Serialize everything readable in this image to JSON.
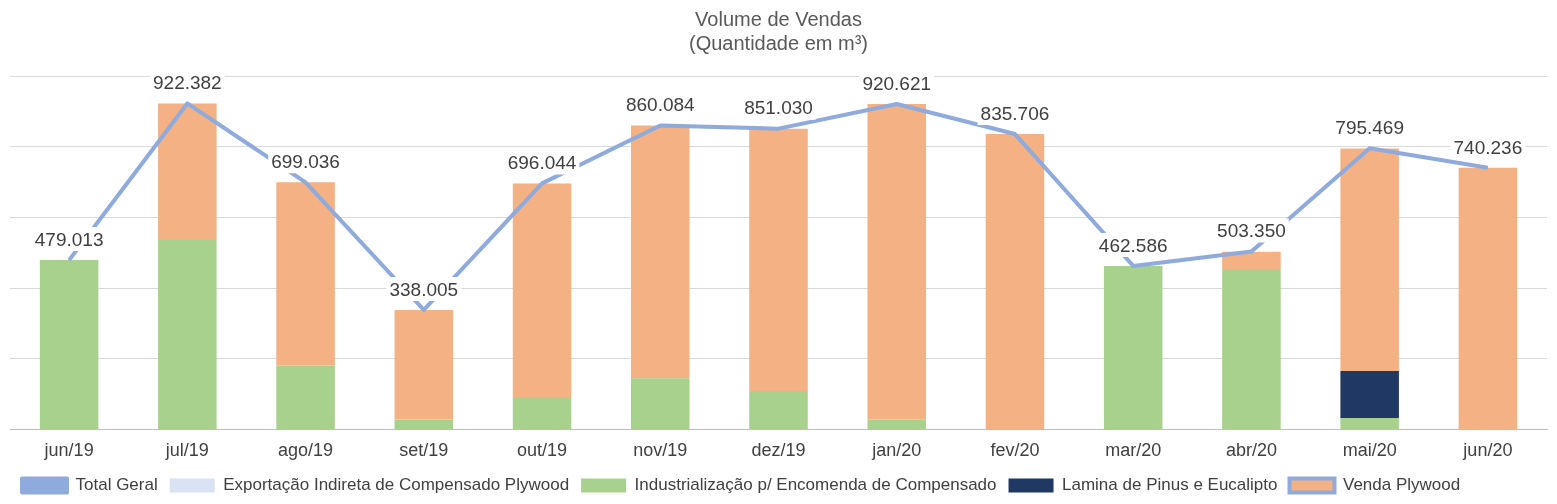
{
  "chart_data": {
    "type": "bar",
    "title": "Volume de Vendas\n(Quantidade em m³)",
    "stacked": true,
    "grid": "y",
    "legend": "bottom",
    "tick_labels": "x",
    "marker": "none",
    "categories": [
      "jun/19",
      "jul/19",
      "ago/19",
      "set/19",
      "out/19",
      "nov/19",
      "dez/19",
      "jan/20",
      "fev/20",
      "mar/20",
      "abr/20",
      "mai/20",
      "jun/20"
    ],
    "ylim": [
      0,
      1000
    ],
    "yticks": [
      {
        "value": 0,
        "label": null
      },
      {
        "value": 200,
        "label": null
      },
      {
        "value": 400,
        "label": null
      },
      {
        "value": 600,
        "label": null
      },
      {
        "value": 800,
        "label": null
      },
      {
        "value": 1000,
        "label": null
      }
    ],
    "series": [
      {
        "name": "Exportação Indireta de Compensado Plywood",
        "color": "#dae3f3",
        "values": [
          null,
          null,
          null,
          null,
          null,
          null,
          null,
          null,
          null,
          null,
          null,
          null,
          null
        ]
      },
      {
        "name": "Industrialização p/ Encomenda de Compensado",
        "color": "#a9d18e",
        "values": [
          479.013,
          536,
          181,
          28,
          89,
          145,
          109,
          28,
          null,
          462.586,
          451,
          32,
          null
        ]
      },
      {
        "name": "Lamina de Pinus e Eucalipto",
        "color": "#203864",
        "values": [
          null,
          null,
          null,
          null,
          null,
          null,
          null,
          null,
          null,
          null,
          null,
          133,
          null
        ]
      },
      {
        "name": "Venda Plywood",
        "color": "#f4b183",
        "values": [
          null,
          386,
          518,
          310,
          607,
          715,
          742,
          893,
          835.706,
          null,
          52,
          630,
          740.236
        ]
      },
      {
        "name": "Total Geral",
        "type": "line",
        "color": "#8faadc",
        "values": [
          479.013,
          922.382,
          699.036,
          338.005,
          696.044,
          860.084,
          851.03,
          920.621,
          835.706,
          462.586,
          503.35,
          795.469,
          740.236
        ],
        "value_labels": [
          "479.013",
          "922.382",
          "699.036",
          "338.005",
          "696.044",
          "860.084",
          "851.030",
          "920.621",
          "835.706",
          "462.586",
          "503.350",
          "795.469",
          "740.236"
        ]
      }
    ]
  }
}
